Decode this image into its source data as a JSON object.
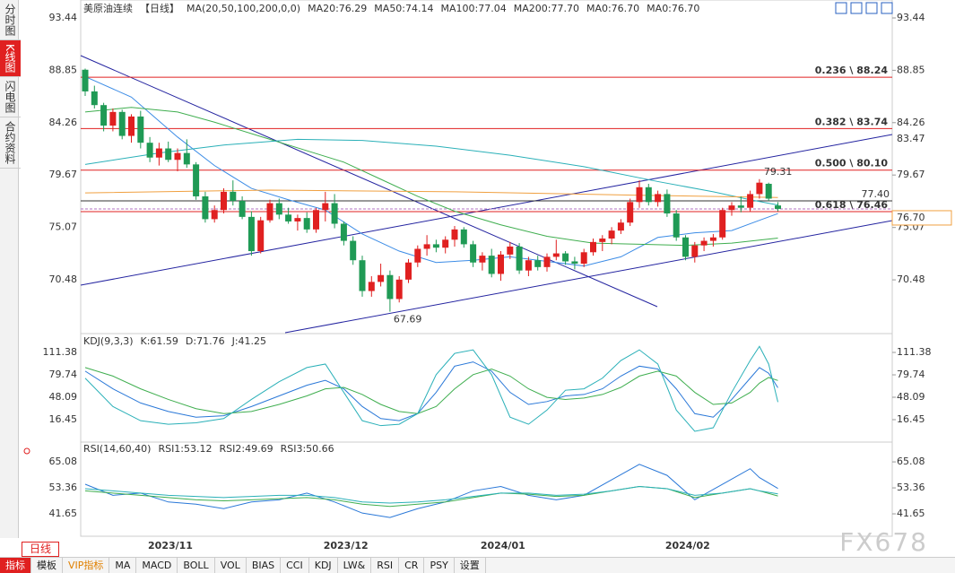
{
  "sidebar": {
    "items": [
      "分时图",
      "K线图",
      "闪电图",
      "合约资料"
    ],
    "active": 1
  },
  "period_button": "日线",
  "watermark": "FX678",
  "toolbar": {
    "items": [
      "指标",
      "模板",
      "VIP指标",
      "MA",
      "MACD",
      "BOLL",
      "VOL",
      "BIAS",
      "CCI",
      "KDJ",
      "LW&",
      "RSI",
      "CR",
      "PSY",
      "设置"
    ],
    "active": 0
  },
  "chart_data": [
    {
      "type": "candlestick",
      "title": "美原油连续",
      "period": "【日线】",
      "indicator": "MA(20,50,100,200,0,0)",
      "ylim": [
        65.77,
        94.62
      ],
      "yticks": [
        93.44,
        88.85,
        84.26,
        79.67,
        75.07,
        70.48
      ],
      "up_color": "#e02020",
      "down_color": "#1f9a55",
      "categories": [
        null,
        null,
        null,
        null,
        null,
        null,
        null,
        null,
        null,
        null,
        "2023/11",
        null,
        null,
        null,
        null,
        null,
        null,
        null,
        null,
        null,
        null,
        null,
        null,
        null,
        null,
        null,
        null,
        null,
        null,
        "2023/12",
        null,
        null,
        null,
        null,
        null,
        null,
        null,
        null,
        null,
        null,
        null,
        null,
        null,
        null,
        null,
        null,
        "2024/01",
        null,
        null,
        null,
        null,
        null,
        null,
        null,
        null,
        null,
        null,
        null,
        null,
        null,
        null,
        null,
        null,
        null,
        null,
        null,
        "2024/02",
        null,
        null,
        null,
        null,
        null,
        null,
        null,
        null,
        null
      ],
      "candles": [
        [
          88.9,
          89.0,
          86.6,
          87.0
        ],
        [
          87.0,
          87.5,
          85.5,
          85.8
        ],
        [
          85.8,
          86.0,
          83.5,
          84.0
        ],
        [
          84.0,
          85.5,
          83.5,
          85.2
        ],
        [
          85.2,
          85.4,
          82.8,
          83.1
        ],
        [
          83.1,
          85.0,
          82.5,
          84.8
        ],
        [
          84.8,
          85.3,
          82.0,
          82.5
        ],
        [
          82.5,
          83.0,
          80.8,
          81.2
        ],
        [
          81.2,
          82.5,
          80.5,
          82.0
        ],
        [
          82.0,
          82.6,
          80.8,
          81.0
        ],
        [
          81.0,
          82.0,
          80.0,
          81.6
        ],
        [
          81.6,
          82.8,
          80.3,
          80.6
        ],
        [
          80.6,
          80.8,
          77.5,
          77.8
        ],
        [
          77.8,
          78.2,
          75.5,
          75.8
        ],
        [
          75.8,
          77.0,
          75.5,
          76.6
        ],
        [
          76.6,
          78.5,
          76.3,
          78.2
        ],
        [
          78.2,
          79.2,
          77.0,
          77.4
        ],
        [
          77.4,
          77.8,
          75.8,
          76.0
        ],
        [
          76.0,
          76.5,
          72.6,
          73.0
        ],
        [
          73.0,
          76.0,
          72.8,
          75.7
        ],
        [
          75.7,
          77.5,
          75.5,
          77.2
        ],
        [
          77.2,
          77.6,
          75.8,
          76.2
        ],
        [
          76.2,
          76.8,
          75.4,
          75.6
        ],
        [
          75.6,
          76.2,
          74.8,
          75.9
        ],
        [
          75.9,
          76.4,
          74.6,
          74.9
        ],
        [
          74.9,
          76.8,
          74.6,
          76.6
        ],
        [
          76.6,
          78.2,
          75.6,
          77.2
        ],
        [
          77.2,
          78.0,
          75.0,
          75.4
        ],
        [
          75.4,
          75.6,
          73.5,
          73.9
        ],
        [
          73.9,
          74.3,
          71.8,
          72.2
        ],
        [
          72.2,
          72.6,
          69.0,
          69.5
        ],
        [
          69.5,
          70.8,
          69.0,
          70.3
        ],
        [
          70.3,
          71.9,
          69.9,
          70.9
        ],
        [
          70.9,
          71.3,
          67.69,
          68.8
        ],
        [
          68.8,
          70.8,
          68.5,
          70.5
        ],
        [
          70.5,
          72.3,
          70.2,
          72.0
        ],
        [
          72.0,
          73.5,
          71.6,
          73.2
        ],
        [
          73.2,
          74.4,
          72.6,
          73.6
        ],
        [
          73.6,
          74.0,
          72.9,
          73.3
        ],
        [
          73.3,
          74.3,
          72.8,
          74.0
        ],
        [
          74.0,
          75.2,
          73.4,
          74.9
        ],
        [
          74.9,
          75.1,
          73.3,
          73.6
        ],
        [
          73.6,
          73.9,
          71.6,
          72.0
        ],
        [
          72.0,
          72.9,
          71.3,
          72.6
        ],
        [
          72.6,
          73.2,
          70.7,
          71.0
        ],
        [
          71.0,
          73.0,
          70.4,
          72.7
        ],
        [
          72.7,
          73.8,
          72.3,
          73.4
        ],
        [
          73.4,
          73.7,
          71.0,
          71.3
        ],
        [
          71.3,
          72.5,
          70.8,
          72.2
        ],
        [
          72.2,
          72.6,
          71.3,
          71.6
        ],
        [
          71.6,
          72.8,
          71.2,
          72.5
        ],
        [
          72.5,
          74.0,
          72.2,
          72.8
        ],
        [
          72.8,
          73.0,
          71.8,
          72.1
        ],
        [
          72.1,
          72.5,
          71.4,
          71.9
        ],
        [
          71.9,
          73.2,
          71.6,
          72.9
        ],
        [
          72.9,
          74.1,
          72.6,
          73.8
        ],
        [
          73.8,
          74.4,
          73.0,
          74.1
        ],
        [
          74.1,
          75.1,
          73.6,
          74.8
        ],
        [
          74.8,
          75.8,
          74.5,
          75.5
        ],
        [
          75.5,
          77.6,
          75.2,
          77.3
        ],
        [
          77.3,
          79.2,
          76.8,
          78.6
        ],
        [
          78.6,
          78.9,
          77.0,
          77.3
        ],
        [
          77.3,
          78.3,
          76.9,
          78.0
        ],
        [
          78.0,
          78.4,
          76.0,
          76.3
        ],
        [
          76.3,
          76.6,
          73.9,
          74.2
        ],
        [
          74.2,
          74.4,
          72.2,
          72.5
        ],
        [
          72.5,
          73.8,
          72.0,
          73.5
        ],
        [
          73.5,
          74.2,
          73.0,
          73.9
        ],
        [
          73.9,
          74.5,
          73.4,
          74.2
        ],
        [
          74.2,
          76.8,
          74.0,
          76.6
        ],
        [
          76.6,
          77.3,
          76.1,
          77.0
        ],
        [
          77.0,
          77.8,
          76.4,
          76.8
        ],
        [
          76.8,
          78.3,
          76.5,
          78.0
        ],
        [
          78.0,
          79.31,
          77.6,
          79.0
        ],
        [
          78.9,
          79.0,
          77.4,
          77.6
        ],
        [
          77.0,
          77.3,
          76.5,
          76.7
        ]
      ],
      "series": [
        {
          "name": "MA20:76.29",
          "color": "#3c8ce6",
          "x": [
            0,
            5,
            10,
            14,
            18,
            22,
            26,
            30,
            34,
            38,
            42,
            46,
            50,
            54,
            58,
            62,
            66,
            70,
            73,
            75
          ],
          "values": [
            88.3,
            86.5,
            83,
            80.5,
            78.5,
            77.5,
            76.6,
            74.5,
            73,
            72,
            72.2,
            72.5,
            72.1,
            71.7,
            72.5,
            74.2,
            74.6,
            74.8,
            75.7,
            76.29
          ]
        },
        {
          "name": "MA50:74.14",
          "color": "#3fae4f",
          "x": [
            0,
            5,
            10,
            14,
            20,
            24,
            28,
            32,
            36,
            40,
            45,
            50,
            55,
            60,
            65,
            70,
            75
          ],
          "values": [
            85.2,
            85.6,
            85.2,
            84.3,
            82.8,
            81.8,
            80.8,
            79.3,
            77.8,
            76.5,
            75.3,
            74.3,
            73.7,
            73.6,
            73.5,
            73.7,
            74.14
          ]
        },
        {
          "name": "MA100:77.04",
          "color": "#2ab0b8",
          "x": [
            0,
            8,
            15,
            23,
            30,
            38,
            46,
            54,
            62,
            68,
            72,
            75
          ],
          "values": [
            80.6,
            81.6,
            82.3,
            82.8,
            82.7,
            82.2,
            81.4,
            80.4,
            79.1,
            78.2,
            77.5,
            77.04
          ]
        },
        {
          "name": "MA200:77.70",
          "color": "#f0a040",
          "x": [
            0,
            20,
            40,
            60,
            75
          ],
          "values": [
            78.1,
            78.35,
            78.2,
            77.9,
            77.7
          ]
        },
        {
          "name": "MA0:76.70",
          "color": "#e890d0",
          "x": [],
          "values": []
        },
        {
          "name": "MA0:76.70",
          "color": "#b0a0e0",
          "x": [],
          "values": []
        }
      ],
      "fibonacci": [
        {
          "label": "0.236 \\ 88.24",
          "value": 88.24
        },
        {
          "label": "0.382 \\ 83.74",
          "value": 83.74
        },
        {
          "label": "0.500 \\ 80.10",
          "value": 80.1
        },
        {
          "label": "0.618 \\ 76.46",
          "value": 76.46
        }
      ],
      "price_line": {
        "value": 77.4,
        "label": "77.40"
      },
      "current_price": {
        "value": 76.7,
        "label": "76.70"
      },
      "channel_tag": 83.47,
      "high": {
        "index": 73,
        "value": 79.31
      },
      "low": {
        "index": 33,
        "value": 67.69
      }
    },
    {
      "type": "line",
      "title": "KDJ(9,3,3)",
      "ylim": [
        -11.4,
        134.2
      ],
      "yticks": [
        111.38,
        79.74,
        48.09,
        16.45
      ],
      "series": [
        {
          "name": "K:61.59",
          "color": "#2a78d8",
          "x": [
            0,
            3,
            6,
            9,
            12,
            15,
            18,
            21,
            24,
            26,
            28,
            30,
            32,
            34,
            36,
            38,
            40,
            42,
            44,
            46,
            48,
            50,
            52,
            54,
            56,
            58,
            60,
            62,
            64,
            66,
            68,
            70,
            72,
            73,
            74,
            75
          ],
          "values": [
            85,
            60,
            40,
            28,
            20,
            22,
            35,
            50,
            65,
            72,
            60,
            35,
            18,
            15,
            25,
            55,
            92,
            98,
            85,
            55,
            38,
            42,
            50,
            52,
            60,
            78,
            92,
            88,
            60,
            25,
            20,
            45,
            75,
            90,
            82,
            61.59
          ]
        },
        {
          "name": "D:71.76",
          "color": "#3fae4f",
          "x": [
            0,
            3,
            6,
            9,
            12,
            15,
            18,
            21,
            24,
            26,
            28,
            30,
            32,
            34,
            36,
            38,
            40,
            42,
            44,
            46,
            48,
            50,
            52,
            54,
            56,
            58,
            60,
            62,
            64,
            66,
            68,
            70,
            72,
            73,
            74,
            75
          ],
          "values": [
            90,
            78,
            60,
            45,
            32,
            25,
            28,
            38,
            50,
            60,
            62,
            52,
            38,
            28,
            25,
            35,
            60,
            80,
            88,
            78,
            60,
            48,
            45,
            47,
            52,
            62,
            78,
            85,
            78,
            55,
            38,
            40,
            55,
            68,
            76,
            71.76
          ]
        },
        {
          "name": "J:41.25",
          "color": "#2ab0b8",
          "x": [
            0,
            3,
            6,
            9,
            12,
            15,
            18,
            21,
            24,
            26,
            28,
            30,
            32,
            34,
            36,
            38,
            40,
            42,
            44,
            46,
            48,
            50,
            52,
            54,
            56,
            58,
            60,
            62,
            64,
            66,
            68,
            70,
            72,
            73,
            74,
            75
          ],
          "values": [
            75,
            35,
            15,
            10,
            12,
            18,
            45,
            70,
            90,
            95,
            55,
            15,
            8,
            10,
            25,
            80,
            110,
            115,
            80,
            20,
            10,
            30,
            58,
            60,
            75,
            100,
            115,
            95,
            30,
            0,
            5,
            55,
            100,
            120,
            95,
            41.25
          ]
        }
      ]
    },
    {
      "type": "line",
      "title": "RSI(14,60,40)",
      "ylim": [
        31.55,
        73.2
      ],
      "yticks": [
        65.08,
        53.36,
        41.65
      ],
      "series": [
        {
          "name": "RSI1:53.12",
          "color": "#2a78d8",
          "x": [
            0,
            3,
            6,
            9,
            12,
            15,
            18,
            21,
            24,
            27,
            30,
            33,
            36,
            39,
            42,
            45,
            48,
            51,
            54,
            57,
            60,
            63,
            66,
            69,
            72,
            73,
            75
          ],
          "values": [
            55,
            50,
            51,
            47,
            46,
            44,
            47,
            48,
            51,
            47,
            42,
            40,
            44,
            47,
            52,
            54,
            50,
            48,
            50,
            57,
            64,
            59,
            48,
            55,
            62,
            58,
            53.12
          ]
        },
        {
          "name": "RSI2:49.69",
          "color": "#3fae4f",
          "x": [
            0,
            3,
            6,
            9,
            12,
            15,
            18,
            21,
            24,
            27,
            30,
            33,
            36,
            39,
            42,
            45,
            48,
            51,
            54,
            57,
            60,
            63,
            66,
            69,
            72,
            73,
            75
          ],
          "values": [
            52,
            51,
            50,
            49,
            48,
            47.5,
            48,
            48.5,
            49,
            48,
            46,
            45,
            46,
            47,
            49,
            51,
            50.5,
            49.5,
            50,
            52,
            54,
            53,
            49,
            51,
            53,
            52,
            49.69
          ]
        },
        {
          "name": "RSI3:50.66",
          "color": "#2ab0b8",
          "x": [
            0,
            3,
            6,
            9,
            12,
            15,
            18,
            21,
            24,
            27,
            30,
            33,
            36,
            39,
            42,
            45,
            48,
            51,
            54,
            57,
            60,
            63,
            66,
            69,
            72,
            73,
            75
          ],
          "values": [
            53,
            52,
            51,
            50,
            49.5,
            49,
            49.5,
            50,
            50,
            49,
            47,
            46.5,
            47,
            48,
            49.5,
            51,
            51,
            50,
            50.5,
            52,
            54,
            53,
            50,
            51,
            53,
            52,
            50.66
          ]
        }
      ]
    }
  ]
}
